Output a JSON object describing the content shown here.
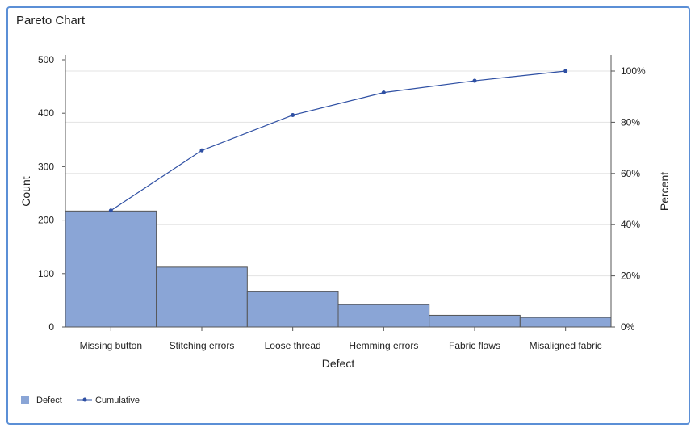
{
  "chart_data": {
    "type": "pareto",
    "title": "Pareto Chart",
    "xlabel": "Defect",
    "ylabel": "Count",
    "y2label": "Percent",
    "categories": [
      "Missing button",
      "Stitching errors",
      "Loose thread",
      "Hemming errors",
      "Fabric flaws",
      "Misaligned fabric"
    ],
    "series": [
      {
        "name": "Defect",
        "type": "bar",
        "values": [
          217,
          112,
          66,
          42,
          22,
          18
        ],
        "color": "#8aa5d6"
      },
      {
        "name": "Cumulative",
        "type": "line",
        "axis": "right",
        "values": [
          45.5,
          69.0,
          82.8,
          91.6,
          96.2,
          100
        ],
        "color": "#2e4fa3"
      }
    ],
    "ylim": [
      0,
      500
    ],
    "yticks": [
      "0",
      "100",
      "200",
      "300",
      "400",
      "500"
    ],
    "y2lim": [
      0,
      100
    ],
    "y2ticks": [
      "0%",
      "20%",
      "40%",
      "60%",
      "80%",
      "100%"
    ],
    "grid": true,
    "legend": "bottom-left"
  }
}
